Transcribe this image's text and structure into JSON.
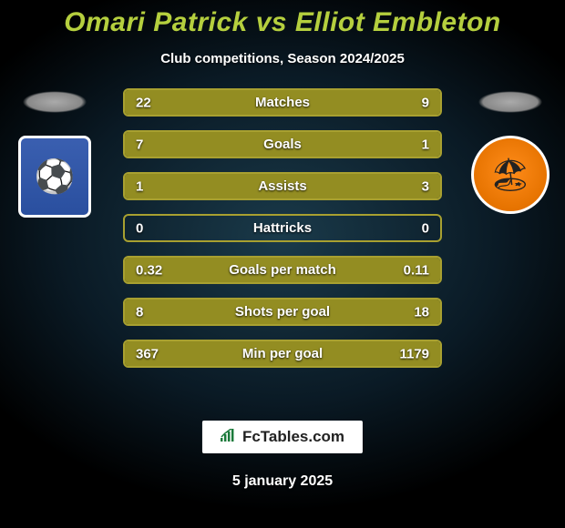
{
  "title": "Omari Patrick vs Elliot Embleton",
  "subtitle": "Club competitions, Season 2024/2025",
  "date": "5 january 2025",
  "brand": "FcTables.com",
  "colors": {
    "accent": "#b5cf3e",
    "bar_border": "#a8a030",
    "bar_fill": "#938d22",
    "bg_from": "#1a3a4a",
    "bg_to": "#000000",
    "text": "#ffffff"
  },
  "left_player": {
    "crest_glyph": "⚽",
    "crest_label": "tranmere-crest"
  },
  "right_player": {
    "crest_glyph": "🏖",
    "crest_label": "blackpool-crest"
  },
  "rows": [
    {
      "label": "Matches",
      "left": "22",
      "right": "9",
      "left_pct": 71,
      "right_pct": 29
    },
    {
      "label": "Goals",
      "left": "7",
      "right": "1",
      "left_pct": 88,
      "right_pct": 12
    },
    {
      "label": "Assists",
      "left": "1",
      "right": "3",
      "left_pct": 25,
      "right_pct": 75
    },
    {
      "label": "Hattricks",
      "left": "0",
      "right": "0",
      "left_pct": 0,
      "right_pct": 0
    },
    {
      "label": "Goals per match",
      "left": "0.32",
      "right": "0.11",
      "left_pct": 74,
      "right_pct": 26
    },
    {
      "label": "Shots per goal",
      "left": "8",
      "right": "18",
      "left_pct": 31,
      "right_pct": 69
    },
    {
      "label": "Min per goal",
      "left": "367",
      "right": "1179",
      "left_pct": 24,
      "right_pct": 76
    }
  ]
}
